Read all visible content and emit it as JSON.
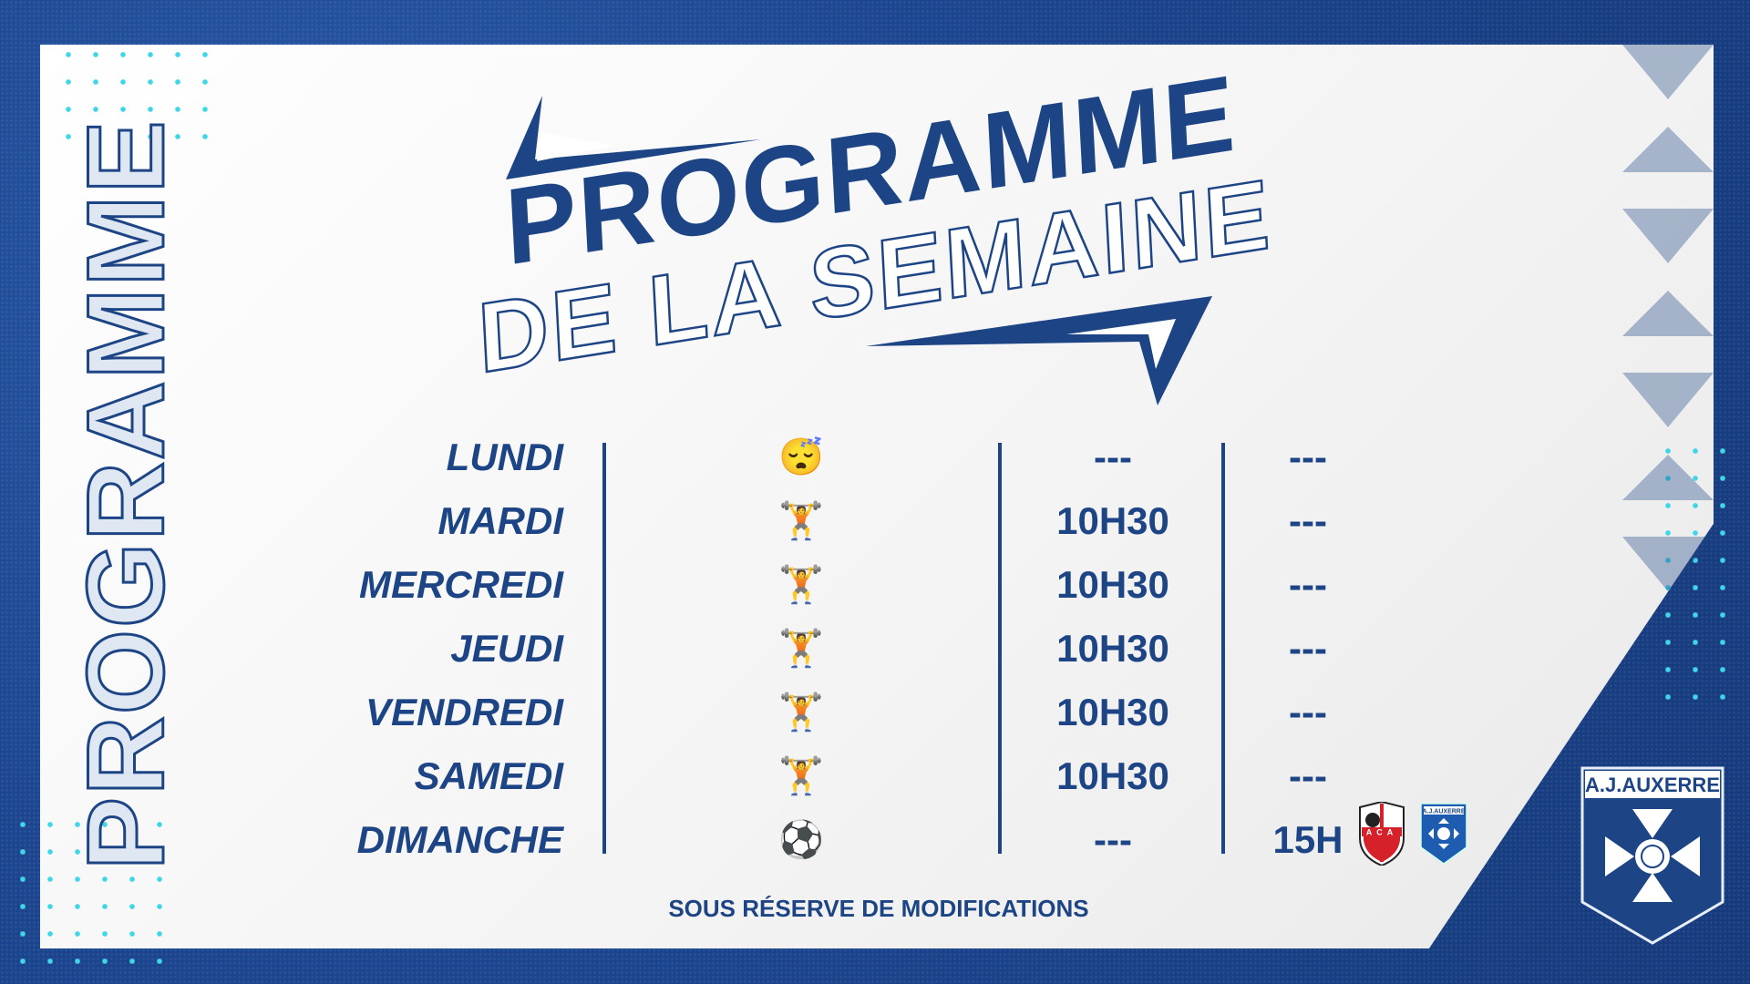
{
  "side_title": "PROGRAMME",
  "title": {
    "line1": "PROGRAMME",
    "line2": "DE LA SEMAINE"
  },
  "schedule": [
    {
      "day": "LUNDI",
      "icon": "sleeping-face-icon",
      "emoji": "😴",
      "time": "---",
      "match": "---"
    },
    {
      "day": "MARDI",
      "icon": "weightlifter-icon",
      "emoji": "🏋",
      "time": "10H30",
      "match": "---"
    },
    {
      "day": "MERCREDI",
      "icon": "weightlifter-icon",
      "emoji": "🏋",
      "time": "10H30",
      "match": "---"
    },
    {
      "day": "JEUDI",
      "icon": "weightlifter-icon",
      "emoji": "🏋",
      "time": "10H30",
      "match": "---"
    },
    {
      "day": "VENDREDI",
      "icon": "weightlifter-icon",
      "emoji": "🏋",
      "time": "10H30",
      "match": "---"
    },
    {
      "day": "SAMEDI",
      "icon": "weightlifter-icon",
      "emoji": "🏋",
      "time": "10H30",
      "match": "---"
    },
    {
      "day": "DIMANCHE",
      "icon": "soccer-ball-icon",
      "emoji": "⚽",
      "time": "---",
      "match": "15H"
    }
  ],
  "match_logos": {
    "home": "ACA",
    "away": "A.J.AUXERRE"
  },
  "footer": "SOUS RÉSERVE DE MODIFICATIONS",
  "club": "A.J.AUXERRE",
  "colors": {
    "brand_blue": "#1d4585",
    "accent_cyan": "#3fd6e8",
    "ajaccio_red": "#d6202a"
  }
}
